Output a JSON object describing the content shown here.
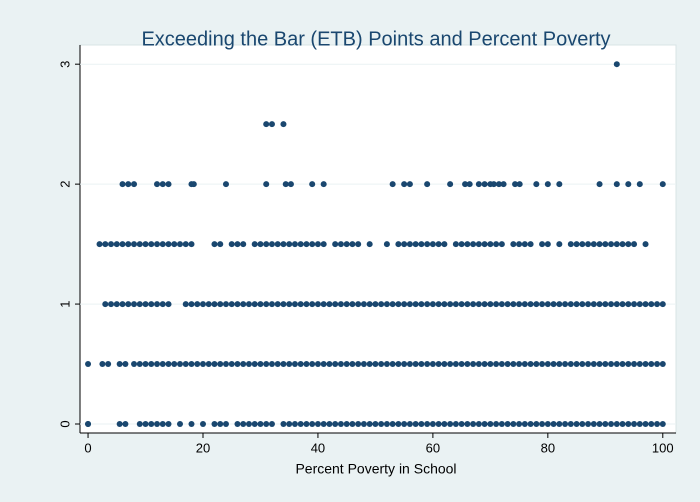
{
  "chart_data": {
    "type": "scatter",
    "title": "Exceeding the Bar (ETB) Points and Percent Poverty",
    "xlabel": "Percent Poverty in School",
    "color": "#1a476f",
    "xlim": [
      -1.4,
      102.3
    ],
    "ylim": [
      -0.075,
      3.16
    ],
    "xticks": [
      0,
      20,
      40,
      60,
      80,
      100
    ],
    "yticks": [
      0,
      1,
      2,
      3
    ],
    "series": [
      {
        "x": [
          0,
          0,
          5.5,
          6.5,
          9,
          10,
          11,
          12,
          13,
          14,
          16,
          18,
          20,
          22,
          23,
          24,
          26,
          27,
          28,
          29,
          30,
          31,
          32,
          34,
          35,
          36,
          37,
          38,
          39,
          40,
          41,
          42,
          43,
          44,
          45,
          46,
          47,
          48,
          49,
          50,
          51,
          52,
          53,
          54,
          55,
          56,
          57,
          58,
          59,
          60,
          61,
          62,
          63,
          64,
          65,
          66,
          67,
          68,
          69,
          70,
          71,
          72,
          73,
          74,
          75,
          76,
          77,
          78,
          79,
          80,
          81,
          82,
          83,
          84,
          85,
          86,
          87,
          88,
          89,
          90,
          91,
          92,
          93,
          94,
          95,
          96,
          97,
          98,
          99,
          100
        ],
        "values": [
          0,
          0,
          0,
          0,
          0,
          0,
          0,
          0,
          0,
          0,
          0,
          0,
          0,
          0,
          0,
          0,
          0,
          0,
          0,
          0,
          0,
          0,
          0,
          0,
          0,
          0,
          0,
          0,
          0,
          0,
          0,
          0,
          0,
          0,
          0,
          0,
          0,
          0,
          0,
          0,
          0,
          0,
          0,
          0,
          0,
          0,
          0,
          0,
          0,
          0,
          0,
          0,
          0,
          0,
          0,
          0,
          0,
          0,
          0,
          0,
          0,
          0,
          0,
          0,
          0,
          0,
          0,
          0,
          0,
          0,
          0,
          0,
          0,
          0,
          0,
          0,
          0,
          0,
          0,
          0,
          0,
          0,
          0,
          0,
          0,
          0,
          0,
          0,
          0,
          0
        ]
      },
      {
        "x": [
          0,
          2.5,
          3.5,
          5.5,
          6.5,
          8,
          9,
          10,
          11,
          12,
          13,
          14,
          15,
          16,
          17,
          18,
          19,
          20,
          21,
          22,
          23,
          24,
          25,
          26,
          27,
          28,
          29,
          30,
          31,
          32,
          33,
          34,
          35,
          36,
          37,
          38,
          39,
          40,
          41,
          42,
          43,
          44,
          45,
          46,
          47,
          48,
          49,
          50,
          51,
          52,
          53,
          54,
          55,
          56,
          57,
          58,
          59,
          60,
          61,
          62,
          63,
          64,
          65,
          66,
          67,
          68,
          69,
          70,
          71,
          72,
          73,
          74,
          75,
          76,
          77,
          78,
          79,
          80,
          81,
          82,
          83,
          84,
          85,
          86,
          87,
          88,
          89,
          90,
          91,
          92,
          93,
          94,
          95,
          96,
          97,
          98,
          99,
          100
        ],
        "values": [
          0.5,
          0.5,
          0.5,
          0.5,
          0.5,
          0.5,
          0.5,
          0.5,
          0.5,
          0.5,
          0.5,
          0.5,
          0.5,
          0.5,
          0.5,
          0.5,
          0.5,
          0.5,
          0.5,
          0.5,
          0.5,
          0.5,
          0.5,
          0.5,
          0.5,
          0.5,
          0.5,
          0.5,
          0.5,
          0.5,
          0.5,
          0.5,
          0.5,
          0.5,
          0.5,
          0.5,
          0.5,
          0.5,
          0.5,
          0.5,
          0.5,
          0.5,
          0.5,
          0.5,
          0.5,
          0.5,
          0.5,
          0.5,
          0.5,
          0.5,
          0.5,
          0.5,
          0.5,
          0.5,
          0.5,
          0.5,
          0.5,
          0.5,
          0.5,
          0.5,
          0.5,
          0.5,
          0.5,
          0.5,
          0.5,
          0.5,
          0.5,
          0.5,
          0.5,
          0.5,
          0.5,
          0.5,
          0.5,
          0.5,
          0.5,
          0.5,
          0.5,
          0.5,
          0.5,
          0.5,
          0.5,
          0.5,
          0.5,
          0.5,
          0.5,
          0.5,
          0.5,
          0.5,
          0.5,
          0.5,
          0.5,
          0.5,
          0.5,
          0.5,
          0.5,
          0.5,
          0.5,
          0.5
        ]
      },
      {
        "x": [
          3,
          4,
          5,
          6,
          7,
          8,
          9,
          10,
          11,
          12,
          13,
          14,
          17,
          18,
          19,
          20,
          21,
          22,
          23,
          24,
          25,
          26,
          27,
          28,
          29,
          30,
          31,
          32,
          33,
          34,
          35,
          36,
          37,
          38,
          39,
          40,
          41,
          42,
          43,
          44,
          45,
          46,
          47,
          48,
          49,
          50,
          51,
          52,
          53,
          54,
          55,
          56,
          57,
          58,
          59,
          60,
          61,
          62,
          63,
          64,
          65,
          66,
          67,
          68,
          69,
          70,
          71,
          72,
          73,
          74,
          75,
          76,
          77,
          78,
          79,
          80,
          81,
          82,
          83,
          84,
          85,
          86,
          87,
          88,
          89,
          90,
          91,
          92,
          93,
          94,
          95,
          96,
          97,
          98,
          99,
          100
        ],
        "values": [
          1,
          1,
          1,
          1,
          1,
          1,
          1,
          1,
          1,
          1,
          1,
          1,
          1,
          1,
          1,
          1,
          1,
          1,
          1,
          1,
          1,
          1,
          1,
          1,
          1,
          1,
          1,
          1,
          1,
          1,
          1,
          1,
          1,
          1,
          1,
          1,
          1,
          1,
          1,
          1,
          1,
          1,
          1,
          1,
          1,
          1,
          1,
          1,
          1,
          1,
          1,
          1,
          1,
          1,
          1,
          1,
          1,
          1,
          1,
          1,
          1,
          1,
          1,
          1,
          1,
          1,
          1,
          1,
          1,
          1,
          1,
          1,
          1,
          1,
          1,
          1,
          1,
          1,
          1,
          1,
          1,
          1,
          1,
          1,
          1,
          1,
          1,
          1,
          1,
          1,
          1,
          1,
          1,
          1,
          1,
          1
        ]
      },
      {
        "x": [
          2,
          3,
          4,
          5,
          6,
          7,
          8,
          9,
          10,
          11,
          12,
          13,
          14,
          15,
          16,
          17,
          18,
          22,
          23,
          25,
          26,
          27,
          29,
          30,
          31,
          32,
          33,
          34,
          35,
          36,
          37,
          38,
          39,
          40,
          41,
          43,
          44,
          45,
          46,
          47,
          49,
          52,
          54,
          55,
          56,
          57,
          58,
          59,
          60,
          61,
          62,
          64,
          65,
          66,
          67,
          68,
          69,
          70,
          71,
          72,
          74,
          75,
          76,
          77,
          79,
          80,
          82,
          84,
          85,
          86,
          87,
          88,
          89,
          90,
          91,
          92,
          93,
          94,
          95,
          97
        ],
        "values": [
          1.5,
          1.5,
          1.5,
          1.5,
          1.5,
          1.5,
          1.5,
          1.5,
          1.5,
          1.5,
          1.5,
          1.5,
          1.5,
          1.5,
          1.5,
          1.5,
          1.5,
          1.5,
          1.5,
          1.5,
          1.5,
          1.5,
          1.5,
          1.5,
          1.5,
          1.5,
          1.5,
          1.5,
          1.5,
          1.5,
          1.5,
          1.5,
          1.5,
          1.5,
          1.5,
          1.5,
          1.5,
          1.5,
          1.5,
          1.5,
          1.5,
          1.5,
          1.5,
          1.5,
          1.5,
          1.5,
          1.5,
          1.5,
          1.5,
          1.5,
          1.5,
          1.5,
          1.5,
          1.5,
          1.5,
          1.5,
          1.5,
          1.5,
          1.5,
          1.5,
          1.5,
          1.5,
          1.5,
          1.5,
          1.5,
          1.5,
          1.5,
          1.5,
          1.5,
          1.5,
          1.5,
          1.5,
          1.5,
          1.5,
          1.5,
          1.5,
          1.5,
          1.5,
          1.5,
          1.5
        ]
      },
      {
        "x": [
          6,
          7,
          8,
          12,
          13,
          14,
          18,
          18.4,
          24,
          31,
          34.4,
          35.3,
          39,
          41,
          53,
          55,
          56,
          59,
          63,
          65.6,
          66.4,
          68,
          69,
          70,
          70.6,
          71.5,
          72.3,
          74.3,
          75.1,
          78,
          80,
          82,
          89,
          92,
          94,
          96,
          100
        ],
        "values": [
          2,
          2,
          2,
          2,
          2,
          2,
          2,
          2,
          2,
          2,
          2,
          2,
          2,
          2,
          2,
          2,
          2,
          2,
          2,
          2,
          2,
          2,
          2,
          2,
          2,
          2,
          2,
          2,
          2,
          2,
          2,
          2,
          2,
          2,
          2,
          2,
          2
        ]
      },
      {
        "x": [
          31,
          32,
          34
        ],
        "values": [
          2.5,
          2.5,
          2.5
        ]
      },
      {
        "x": [
          92
        ],
        "values": [
          3
        ]
      }
    ]
  }
}
